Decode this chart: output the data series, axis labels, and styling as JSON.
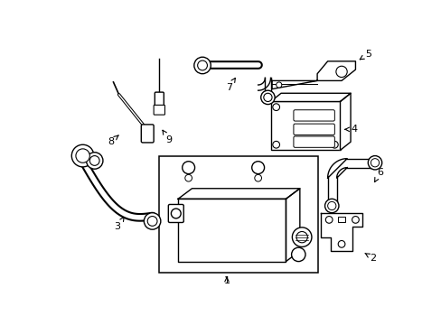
{
  "background_color": "#ffffff",
  "line_color": "#000000",
  "text_color": "#000000",
  "figsize": [
    4.89,
    3.6
  ],
  "dpi": 100
}
